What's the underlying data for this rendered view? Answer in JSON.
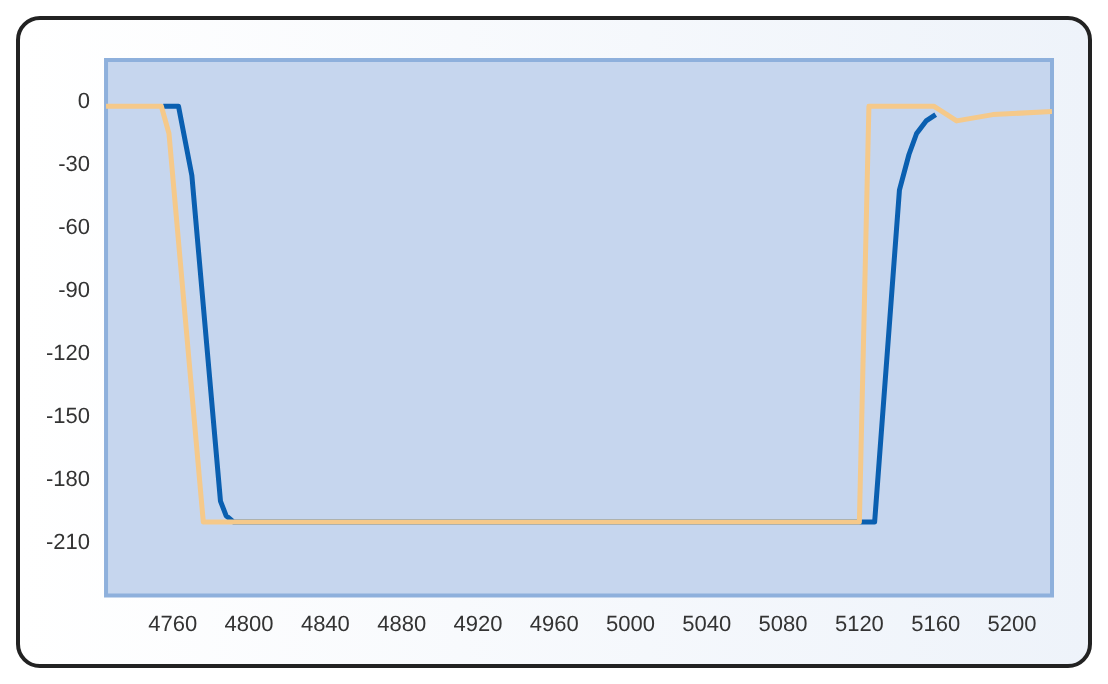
{
  "chart_data": {
    "type": "line",
    "xlim": [
      4725,
      5221
    ],
    "xticks": [
      4760,
      4800,
      4840,
      4880,
      4920,
      4960,
      5000,
      5040,
      5080,
      5120,
      5160,
      5200
    ],
    "ylim": [
      -235,
      20
    ],
    "yticks": [
      0,
      -30,
      -60,
      -90,
      -120,
      -150,
      -180,
      -210
    ],
    "grid": false,
    "legend": false,
    "marker": "none",
    "line_style": "solid",
    "series": [
      {
        "color": "#f5c98a",
        "x": [
          4725,
          4754,
          4758,
          4776,
          5120,
          5125,
          5159,
          5171,
          5190,
          5221
        ],
        "values": [
          -2,
          -2,
          -15,
          -200,
          -200,
          -2,
          -2,
          -9,
          -6,
          -4.5
        ]
      },
      {
        "color": "#0a5fb0",
        "x": [
          4755,
          4763,
          4770,
          4785,
          4788,
          4792,
          5122,
          5128,
          5141,
          5146,
          5150,
          5155,
          5160
        ],
        "values": [
          -2,
          -2,
          -35,
          -190,
          -197,
          -200,
          -200,
          -200,
          -42,
          -25,
          -15,
          -9,
          -6
        ]
      }
    ]
  }
}
